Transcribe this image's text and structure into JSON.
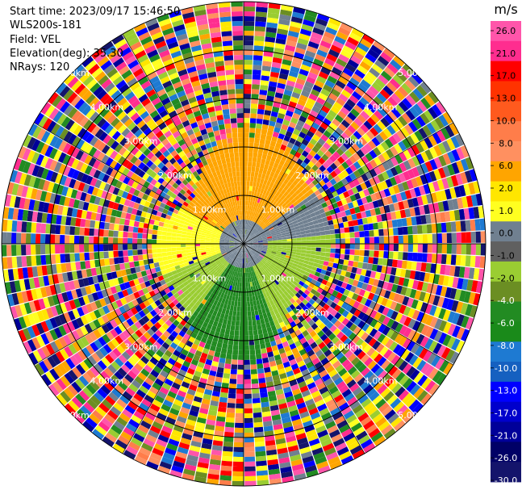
{
  "header": {
    "start_time": "Start time: 2023/09/17 15:46:50",
    "instrument": "WLS200s-181",
    "field": "Field: VEL",
    "elevation": "Elevation(deg): 35.30",
    "nrays": "NRays: 120"
  },
  "chart_data": {
    "type": "heatmap",
    "subtype": "polar-ppi",
    "field": "VEL",
    "nrays": 120,
    "range_rings_km": [
      "1.00km",
      "2.00km",
      "3.00km",
      "4.00km",
      "5.00km"
    ],
    "colorbar": {
      "unit": "m/s",
      "ticks": [
        "26.0",
        "21.0",
        "17.0",
        "13.0",
        "10.0",
        "8.0",
        "6.0",
        "2.0",
        "1.0",
        "0.0",
        "-1.0",
        "-2.0",
        "-4.0",
        "-6.0",
        "-8.0",
        "-10.0",
        "-13.0",
        "-17.0",
        "-21.0",
        "-26.0",
        "-30.0"
      ],
      "colors": [
        "#ff55aa",
        "#ff2d8f",
        "#ff0000",
        "#ff3300",
        "#ff5a1e",
        "#ff7d4a",
        "#ff9060",
        "#ffa500",
        "#ffe600",
        "#ffff20",
        "#708090",
        "#606060",
        "#9acd32",
        "#6b8e23",
        "#228b22",
        "#1a8a1a",
        "#1e7ad2",
        "#1560c0",
        "#0000ff",
        "#0000cc",
        "#000099",
        "#000066",
        "#14146b"
      ]
    },
    "background": {
      "north": "#ffa500",
      "west": "#ffff20",
      "center": "#708090",
      "east": "#9acd32",
      "south": "#228b22"
    },
    "noise_palette": [
      "#ff55aa",
      "#ff2d8f",
      "#ff0000",
      "#ff9060",
      "#ffa500",
      "#ffff20",
      "#708090",
      "#9acd32",
      "#228b22",
      "#6b8e23",
      "#0000ff",
      "#000099",
      "#1e7ad2",
      "#14146b",
      "#ff7d4a",
      "#ffe600"
    ]
  }
}
